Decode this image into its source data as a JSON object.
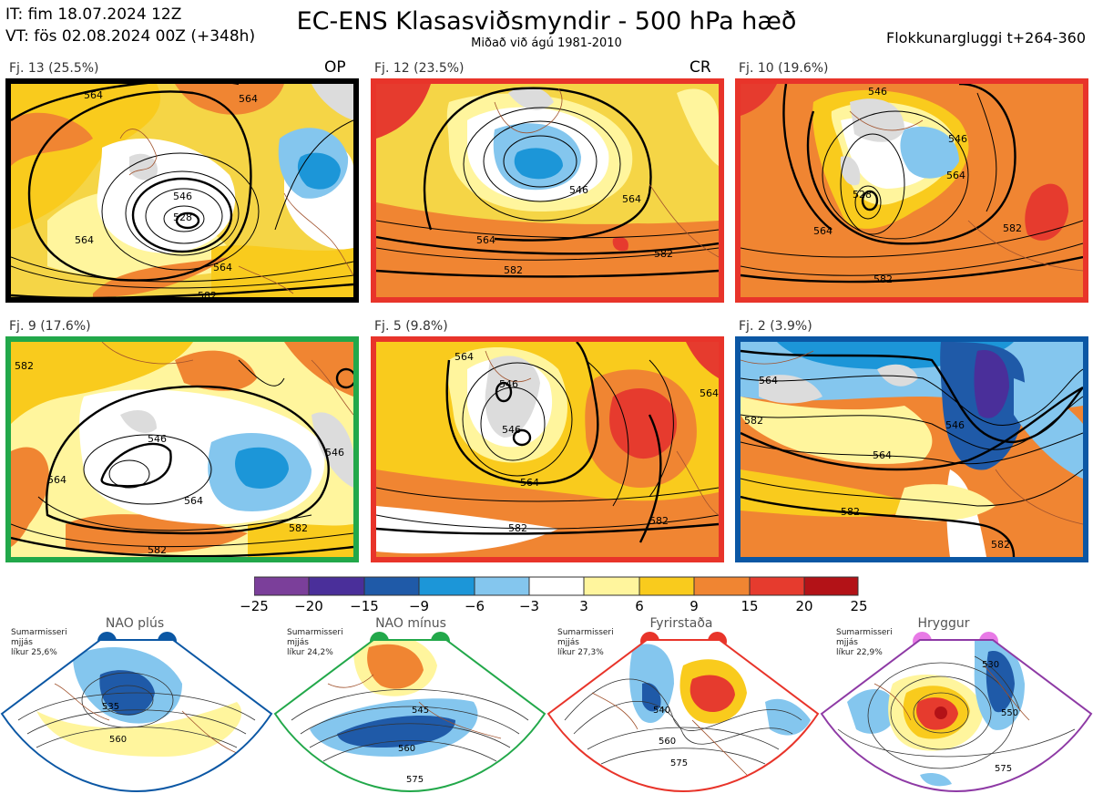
{
  "header": {
    "init_time": "IT: fim 18.07.2024 12Z",
    "valid_time": "VT: fös 02.08.2024 00Z  (+348h)",
    "title": "EC-ENS Klasasviðsmyndir - 500 hPa hæð",
    "subtitle": "Miðað við ágú 1981-2010",
    "window": "Flokkunargluggi t+264-360"
  },
  "colors": {
    "neg25": "#7b3f9a",
    "neg20": "#4a2f9a",
    "neg15": "#1f5aa8",
    "neg9": "#1c96d8",
    "neg6": "#84c6ee",
    "neg3": "#ffffff",
    "pos3": "#fff59d",
    "pos6": "#f9cb1d",
    "pos9": "#f08532",
    "pos15": "#e63b2e",
    "pos20": "#b31217",
    "gray": "#dcdcdc"
  },
  "panels": [
    {
      "label": "Fj. 13 (25.5%)",
      "tag": "OP",
      "border": "#e87ae6",
      "contours": [
        "564",
        "564",
        "564",
        "546",
        "528",
        "564",
        "582"
      ]
    },
    {
      "label": "Fj. 12 (23.5%)",
      "tag": "CR",
      "border": "#e8342a",
      "contours": [
        "546",
        "564",
        "564",
        "582",
        "582"
      ]
    },
    {
      "label": "Fj. 10 (19.6%)",
      "tag": "",
      "border": "#e8342a",
      "contours": [
        "546",
        "564",
        "546",
        "528",
        "564",
        "582",
        "582"
      ]
    },
    {
      "label": "Fj. 9 (17.6%)",
      "tag": "",
      "border": "#22a84a",
      "contours": [
        "582",
        "546",
        "546",
        "564",
        "564",
        "582",
        "582"
      ]
    },
    {
      "label": "Fj. 5 (9.8%)",
      "tag": "",
      "border": "#e8342a",
      "contours": [
        "564",
        "546",
        "546",
        "564",
        "582",
        "582",
        "564"
      ]
    },
    {
      "label": "Fj. 2 (3.9%)",
      "tag": "",
      "border": "#0b57a4",
      "contours": [
        "564",
        "546",
        "582",
        "564",
        "582",
        "582"
      ]
    }
  ],
  "colorbar": {
    "ticks": [
      "−25",
      "−20",
      "−15",
      "−9",
      "−6",
      "−3",
      "3",
      "6",
      "9",
      "15",
      "20",
      "25"
    ]
  },
  "regimes": [
    {
      "name": "NAO plús",
      "season": "Sumarmisseri",
      "note": "mjjás",
      "likelihood": "líkur 25,6%",
      "color": "#0b57a4",
      "contours": [
        "535",
        "560"
      ]
    },
    {
      "name": "NAO mínus",
      "season": "Sumarmisseri",
      "note": "mjjás",
      "likelihood": "líkur 24,2%",
      "color": "#22a84a",
      "contours": [
        "545",
        "560",
        "575"
      ]
    },
    {
      "name": "Fyrirstaða",
      "season": "Sumarmisseri",
      "note": "mjjás",
      "likelihood": "líkur 27,3%",
      "color": "#e8342a",
      "contours": [
        "540",
        "560",
        "575"
      ]
    },
    {
      "name": "Hryggur",
      "season": "Sumarmisseri",
      "note": "mjjás",
      "likelihood": "líkur 22,9%",
      "color": "#e87ae6",
      "contours": [
        "530",
        "550",
        "575"
      ]
    }
  ]
}
